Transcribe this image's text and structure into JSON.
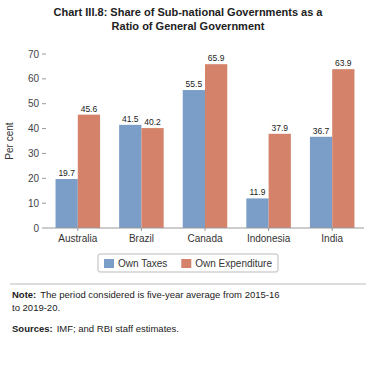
{
  "chart_data": {
    "type": "bar",
    "title": "Chart III.8: Share of Sub-national Governments as a\nRatio of General Government",
    "categories": [
      "Australia",
      "Brazil",
      "Canada",
      "Indonesia",
      "India"
    ],
    "series": [
      {
        "name": "Own Taxes",
        "color": "#7b9ec9",
        "values": [
          19.7,
          41.5,
          55.5,
          11.9,
          36.7
        ]
      },
      {
        "name": "Own Expenditure",
        "color": "#d4826a",
        "values": [
          45.6,
          40.2,
          65.9,
          37.9,
          63.9
        ]
      }
    ],
    "ylabel": "Per cent",
    "ylim": [
      0,
      70
    ],
    "yticks": [
      0,
      10,
      20,
      30,
      40,
      50,
      60,
      70
    ],
    "data_labels": true,
    "grid": false,
    "legend": "bottom",
    "annotations": [
      [
        "Note:",
        "The period considered is five-year average from 2015-16\nto 2019-20."
      ],
      [
        "Sources:",
        "IMF; and RBI staff estimates."
      ]
    ]
  }
}
